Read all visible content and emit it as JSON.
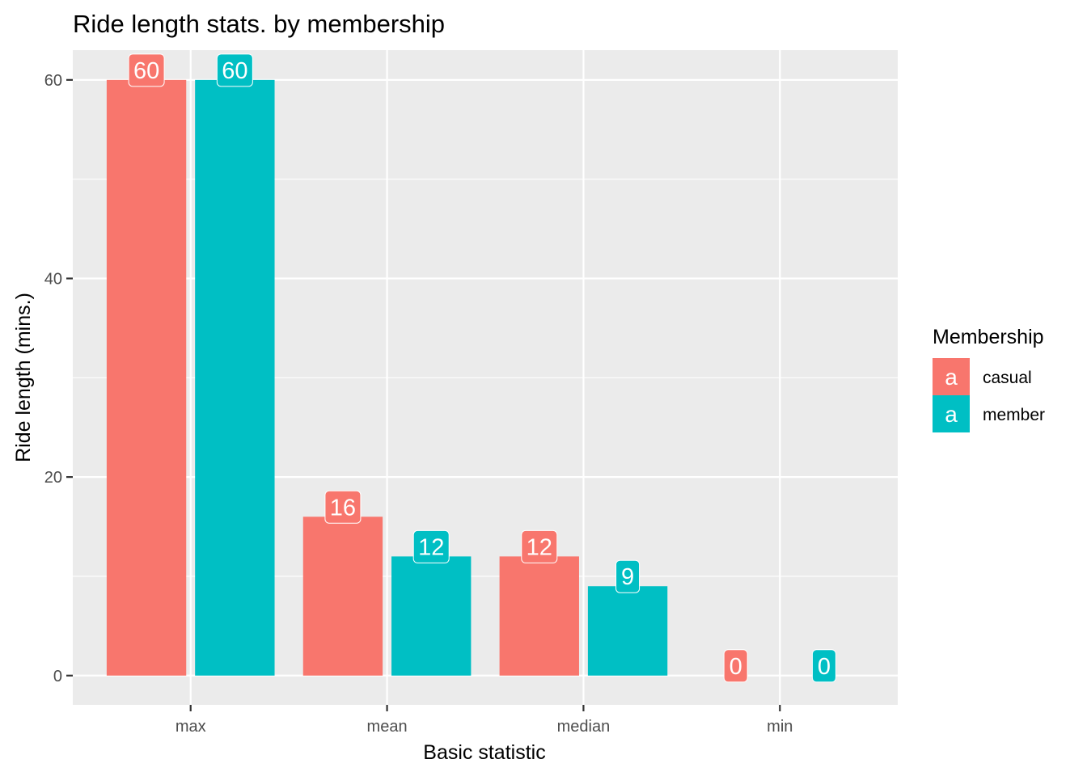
{
  "chart_data": {
    "type": "bar",
    "title": "Ride length stats. by membership",
    "xlabel": "Basic statistic",
    "ylabel": "Ride length (mins.)",
    "categories": [
      "max",
      "mean",
      "median",
      "min"
    ],
    "ylim": [
      -2.95,
      63
    ],
    "yticks": [
      0,
      20,
      40,
      60
    ],
    "grid": true,
    "legend": {
      "title": "Membership",
      "placement": "right",
      "key_glyph": "a"
    },
    "series": [
      {
        "name": "casual",
        "color": "#F8766D",
        "values": [
          60,
          16,
          12,
          0
        ],
        "labels": [
          "60",
          "16",
          "12",
          "0"
        ]
      },
      {
        "name": "member",
        "color": "#00BFC4",
        "values": [
          60,
          12,
          9,
          0
        ],
        "labels": [
          "60",
          "12",
          "9",
          "0"
        ]
      }
    ]
  }
}
